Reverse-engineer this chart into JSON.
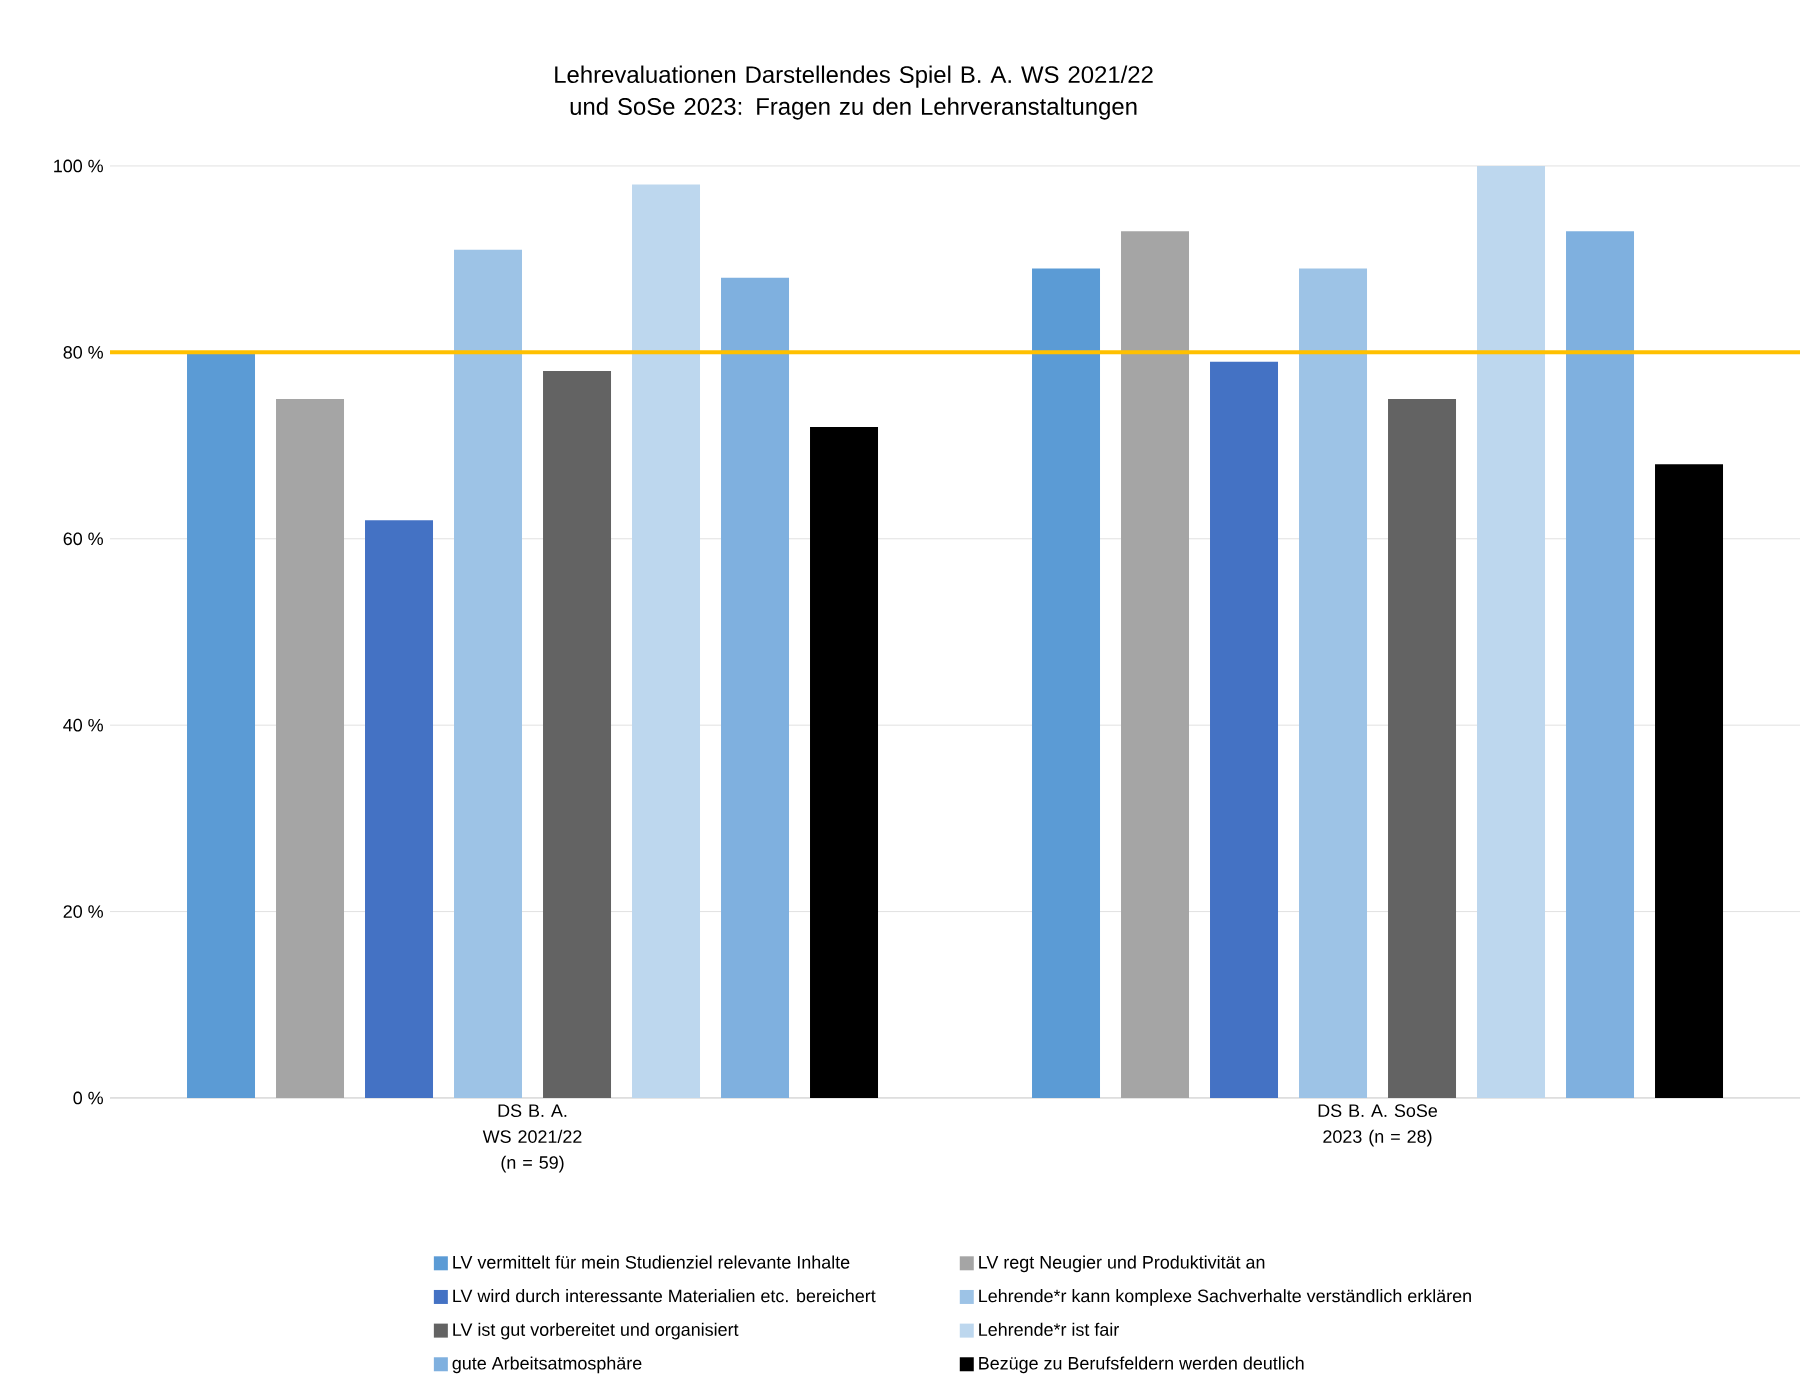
{
  "chart_data": {
    "type": "bar",
    "title": "Lehrevaluationen Darstellendes Spiel B. A. WS 2021/22 und SoSe 2023: Fragen zu den Lehrveranstaltungen",
    "categories": [
      "DS B. A. WS 2021/22 (n = 59)",
      "DS B. A. SoSe 2023 (n = 28)"
    ],
    "series": [
      {
        "name": "LV vermittelt für mein Studienziel relevante Inhalte",
        "color": "#5b9bd5",
        "values": [
          80,
          89
        ]
      },
      {
        "name": "LV regt Neugier und Produktivität an",
        "color": "#a5a5a5",
        "values": [
          75,
          93
        ]
      },
      {
        "name": "LV wird durch interessante Materialien etc. bereichert",
        "color": "#4472c4",
        "values": [
          62,
          79
        ]
      },
      {
        "name": "Lehrende*r kann komplexe Sachverhalte verständlich erklären",
        "color": "#9dc3e6",
        "values": [
          91,
          89
        ]
      },
      {
        "name": "LV ist gut vorbereitet und organisiert",
        "color": "#636363",
        "values": [
          78,
          75
        ]
      },
      {
        "name": "Lehrende*r ist fair",
        "color": "#bdd7ee",
        "values": [
          98,
          100
        ]
      },
      {
        "name": "gute Arbeitsatmosphäre",
        "color": "#7fb0df",
        "values": [
          88,
          93
        ]
      },
      {
        "name": "Bezüge zu Berufsfeldern werden deutlich",
        "color": "#000000",
        "values": [
          72,
          68
        ]
      }
    ],
    "ylim": [
      0,
      100
    ],
    "yticks": [
      {
        "value": 0,
        "label": "0 %"
      },
      {
        "value": 20,
        "label": "20 %"
      },
      {
        "value": 40,
        "label": "40 %"
      },
      {
        "value": 60,
        "label": "60 %"
      },
      {
        "value": 80,
        "label": "80 %"
      },
      {
        "value": 100,
        "label": "100 %"
      }
    ],
    "grid": "y",
    "legend": "bottom",
    "ref_lines": [
      {
        "axis": "y",
        "value": 80,
        "color": "#ffc000"
      }
    ]
  }
}
